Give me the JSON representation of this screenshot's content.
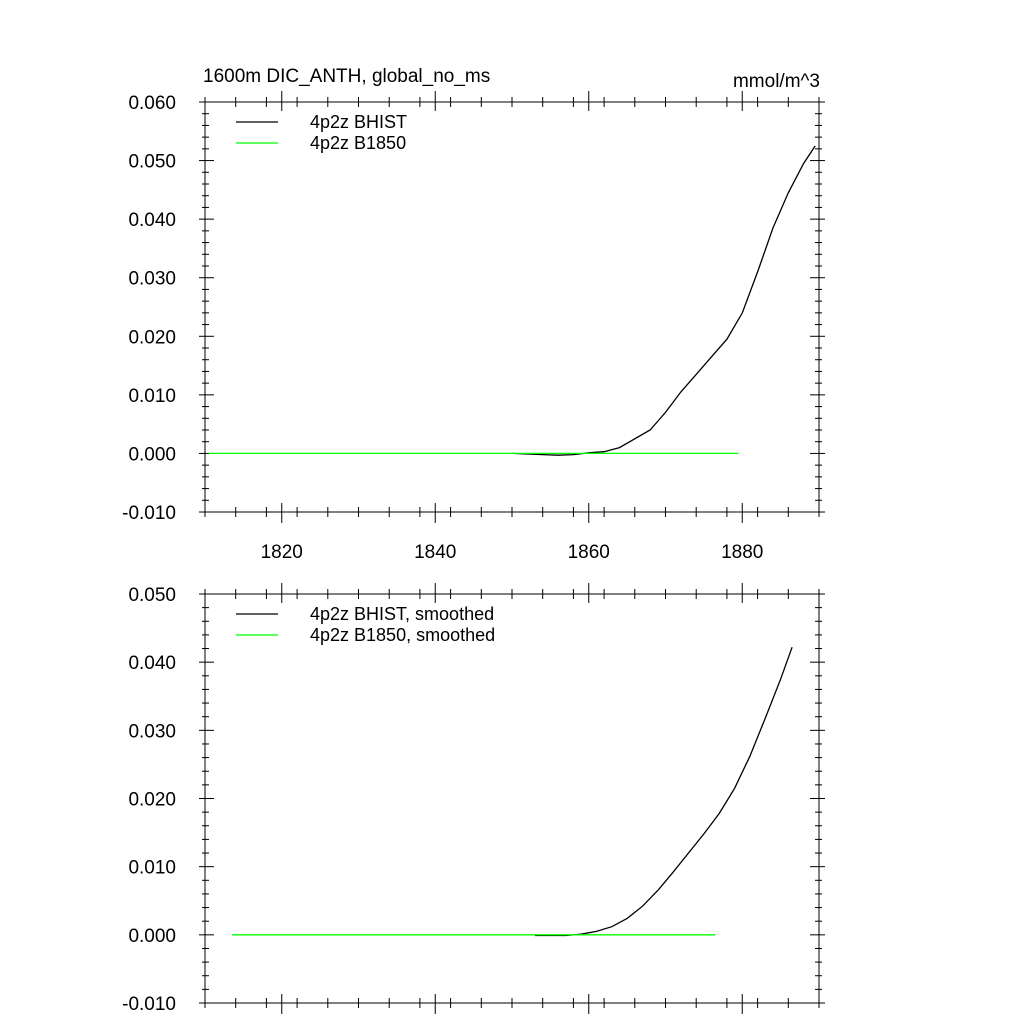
{
  "chart_data": [
    {
      "type": "line",
      "title": "1600m DIC_ANTH, global_no_ms",
      "units": "mmol/m^3",
      "xlim": [
        1810,
        1890
      ],
      "ylim": [
        -0.01,
        0.06
      ],
      "xticks": [
        1820,
        1840,
        1860,
        1880
      ],
      "xtick_labels": [
        "1820",
        "1840",
        "1860",
        "1880"
      ],
      "yticks": [
        -0.01,
        0,
        0.01,
        0.02,
        0.03,
        0.04,
        0.05,
        0.06
      ],
      "ytick_labels": [
        "-0.010",
        "0.000",
        "0.010",
        "0.020",
        "0.030",
        "0.040",
        "0.050",
        "0.060"
      ],
      "legend_position": "top-left",
      "grid": false,
      "series": [
        {
          "name": "4p2z BHIST",
          "color": "#000000",
          "x": [
            1850,
            1852,
            1854,
            1856,
            1858,
            1860,
            1862,
            1864,
            1866,
            1868,
            1870,
            1872,
            1874,
            1876,
            1878,
            1880,
            1882,
            1884,
            1886,
            1888,
            1889.5
          ],
          "y": [
            0.0,
            -0.0001,
            -0.0002,
            -0.0003,
            -0.0002,
            0.0001,
            0.0003,
            0.001,
            0.0025,
            0.004,
            0.007,
            0.0105,
            0.0135,
            0.0165,
            0.0195,
            0.024,
            0.031,
            0.0385,
            0.0445,
            0.0495,
            0.0525
          ]
        },
        {
          "name": "4p2z B1850",
          "color": "#00ff00",
          "x": [
            1810.5,
            1879.5
          ],
          "y": [
            0.0,
            0.0
          ]
        }
      ]
    },
    {
      "type": "line",
      "title": "",
      "xlim": [
        1810,
        1890
      ],
      "ylim": [
        -0.01,
        0.05
      ],
      "xticks": [
        1820,
        1840,
        1860,
        1880
      ],
      "xtick_labels": [],
      "yticks": [
        -0.01,
        0,
        0.01,
        0.02,
        0.03,
        0.04,
        0.05
      ],
      "ytick_labels": [
        "-0.010",
        "0.000",
        "0.010",
        "0.020",
        "0.030",
        "0.040",
        "0.050"
      ],
      "legend_position": "top-left",
      "grid": false,
      "series": [
        {
          "name": "4p2z BHIST, smoothed",
          "color": "#000000",
          "x": [
            1853,
            1855,
            1857,
            1859,
            1861,
            1863,
            1865,
            1867,
            1869,
            1871,
            1873,
            1875,
            1877,
            1879,
            1881,
            1883,
            1885,
            1886.5
          ],
          "y": [
            -0.0001,
            -0.0001,
            -0.0001,
            0.0001,
            0.0005,
            0.0012,
            0.0024,
            0.0042,
            0.0065,
            0.0092,
            0.012,
            0.0148,
            0.0178,
            0.0215,
            0.0262,
            0.0318,
            0.0375,
            0.0422
          ]
        },
        {
          "name": "4p2z B1850, smoothed",
          "color": "#00ff00",
          "x": [
            1813.5,
            1876.5
          ],
          "y": [
            0.0,
            0.0
          ]
        }
      ]
    }
  ]
}
